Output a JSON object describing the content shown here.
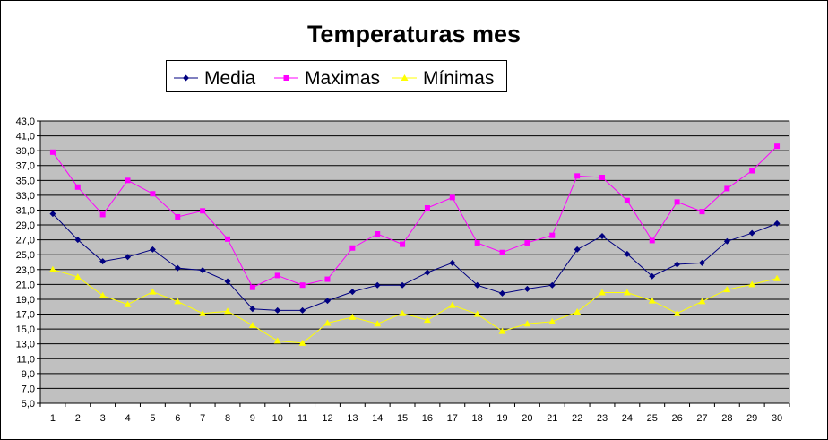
{
  "chart_data": {
    "type": "line",
    "title": "Temperaturas mes",
    "xlabel": "",
    "ylabel": "",
    "categories": [
      "1",
      "2",
      "3",
      "4",
      "5",
      "6",
      "7",
      "8",
      "9",
      "10",
      "11",
      "12",
      "13",
      "14",
      "15",
      "16",
      "17",
      "18",
      "19",
      "20",
      "21",
      "22",
      "23",
      "24",
      "25",
      "26",
      "27",
      "28",
      "29",
      "30"
    ],
    "ylim": [
      5,
      43
    ],
    "ytick_step": 2,
    "ytick_labels": [
      "5,0",
      "7,0",
      "9,0",
      "11,0",
      "13,0",
      "15,0",
      "17,0",
      "19,0",
      "21,0",
      "23,0",
      "25,0",
      "27,0",
      "29,0",
      "31,0",
      "33,0",
      "35,0",
      "37,0",
      "39,0",
      "41,0",
      "43,0"
    ],
    "grid": true,
    "legend_position": "top",
    "series": [
      {
        "name": "Media",
        "color": "#000080",
        "marker": "diamond",
        "values": [
          30.5,
          27.0,
          24.1,
          24.7,
          25.7,
          23.2,
          22.9,
          21.4,
          17.7,
          17.5,
          17.5,
          18.8,
          20.0,
          20.9,
          20.9,
          22.6,
          23.9,
          20.9,
          19.8,
          20.4,
          20.9,
          25.7,
          27.5,
          25.1,
          22.1,
          23.7,
          23.9,
          26.8,
          27.9,
          29.2
        ]
      },
      {
        "name": "Maximas",
        "color": "#ff00ff",
        "marker": "square",
        "values": [
          38.8,
          34.1,
          30.4,
          35.0,
          33.2,
          30.1,
          30.9,
          27.1,
          20.6,
          22.2,
          20.9,
          21.7,
          25.9,
          27.8,
          26.4,
          31.3,
          32.7,
          26.6,
          25.3,
          26.6,
          27.6,
          35.6,
          35.4,
          32.3,
          26.9,
          32.1,
          30.8,
          33.9,
          36.3,
          39.6
        ]
      },
      {
        "name": "Mínimas",
        "color": "#ffff00",
        "marker": "triangle",
        "values": [
          23.0,
          22.0,
          19.5,
          18.3,
          20.0,
          18.7,
          17.1,
          17.4,
          15.5,
          13.4,
          13.1,
          15.8,
          16.6,
          15.7,
          17.1,
          16.2,
          18.2,
          17.0,
          14.7,
          15.7,
          16.0,
          17.3,
          19.9,
          19.9,
          18.8,
          17.1,
          18.7,
          20.3,
          21.0,
          21.8
        ]
      }
    ]
  }
}
